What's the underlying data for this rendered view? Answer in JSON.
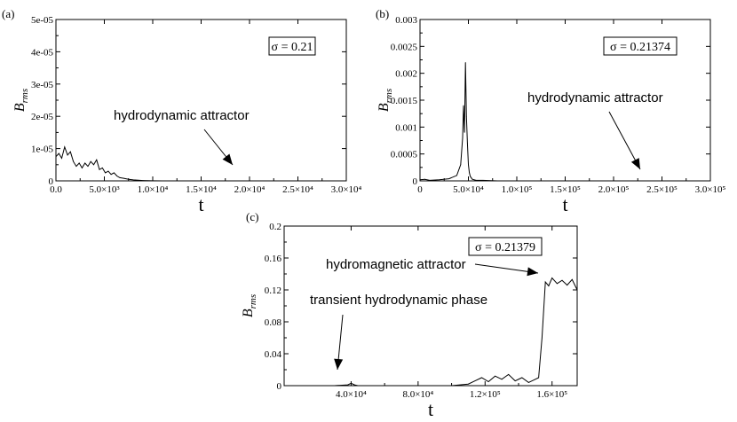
{
  "chart_data": [
    {
      "panel": "(a)",
      "type": "line",
      "xlabel": "t",
      "ylabel": "B",
      "ylabel_sub": "rms",
      "xlim": [
        0,
        30000
      ],
      "ylim": [
        0,
        5e-05
      ],
      "x_ticks": [
        0,
        5000,
        10000,
        15000,
        20000,
        25000,
        30000
      ],
      "x_tick_labels": [
        "0.0",
        "5.0×10³",
        "1.0×10⁴",
        "1.5×10⁴",
        "2.0×10⁴",
        "2.5×10⁴",
        "3.0×10⁴"
      ],
      "y_ticks": [
        0,
        1e-05,
        2e-05,
        3e-05,
        4e-05,
        5e-05
      ],
      "y_tick_labels": [
        "0",
        "1e-05",
        "2e-05",
        "3e-05",
        "4e-05",
        "5e-05"
      ],
      "sigma_label": "σ = 0.21",
      "annotation": "hydrodynamic attractor",
      "series": [
        {
          "x": [
            0,
            300,
            600,
            900,
            1200,
            1500,
            1800,
            2100,
            2400,
            2700,
            3000,
            3300,
            3600,
            3900,
            4200,
            4500,
            4800,
            5100,
            5400,
            5700,
            6000,
            6300,
            6600,
            7000,
            7500,
            8000,
            8500,
            9000,
            9500,
            10000,
            11000,
            12000,
            13000,
            14000
          ],
          "y": [
            7.5e-06,
            8.5e-06,
            7e-06,
            1.05e-05,
            8e-06,
            9e-06,
            6e-06,
            4.5e-06,
            5.5e-06,
            4e-06,
            5.5e-06,
            4.5e-06,
            6e-06,
            5e-06,
            6.5e-06,
            3.5e-06,
            4e-06,
            2.5e-06,
            3e-06,
            2e-06,
            2.5e-06,
            1.5e-06,
            1e-06,
            8e-07,
            5e-07,
            3e-07,
            2e-07,
            1e-07,
            6e-08,
            3e-08,
            1e-08,
            0,
            0,
            0
          ]
        }
      ]
    },
    {
      "panel": "(b)",
      "type": "line",
      "xlabel": "t",
      "ylabel": "B",
      "ylabel_sub": "rms",
      "xlim": [
        0,
        300000
      ],
      "ylim": [
        0,
        0.003
      ],
      "x_ticks": [
        0,
        50000,
        100000,
        150000,
        200000,
        250000,
        300000
      ],
      "x_tick_labels": [
        "0",
        "5.0×10⁴",
        "1.0×10⁵",
        "1.5×10⁵",
        "2.0×10⁵",
        "2.5×10⁵",
        "3.0×10⁵"
      ],
      "y_ticks": [
        0,
        0.0005,
        0.001,
        0.0015,
        0.002,
        0.0025,
        0.003
      ],
      "y_tick_labels": [
        "0",
        "0.0005",
        "0.001",
        "0.0015",
        "0.002",
        "0.0025",
        "0.003"
      ],
      "sigma_label": "σ = 0.21374",
      "annotation": "hydrodynamic attractor",
      "series": [
        {
          "x": [
            0,
            5000,
            10000,
            20000,
            30000,
            38000,
            42000,
            44000,
            45000,
            46000,
            47000,
            48000,
            49000,
            50000,
            51000,
            52000,
            54000,
            58000,
            65000,
            80000
          ],
          "y": [
            2e-05,
            3e-05,
            1e-05,
            2e-05,
            4e-05,
            0.0001,
            0.0003,
            0.0008,
            0.0014,
            0.0009,
            0.0022,
            0.0012,
            0.0007,
            0.0003,
            0.00015,
            8e-05,
            3e-05,
            1e-05,
            1e-05,
            0.0
          ]
        }
      ]
    },
    {
      "panel": "(c)",
      "type": "line",
      "xlabel": "t",
      "ylabel": "B",
      "ylabel_sub": "rms",
      "xlim": [
        0,
        175000
      ],
      "ylim": [
        0,
        0.2
      ],
      "x_ticks": [
        40000,
        80000,
        120000,
        160000
      ],
      "x_tick_labels": [
        "4.0×10⁴",
        "8.0×10⁴",
        "1.2×10⁵",
        "1.6×10⁵"
      ],
      "y_ticks": [
        0,
        0.04,
        0.08,
        0.12,
        0.16,
        0.2
      ],
      "y_tick_labels": [
        "0",
        "0.04",
        "0.08",
        "0.12",
        "0.16",
        "0.2"
      ],
      "sigma_label": "σ = 0.21379",
      "annotations": [
        "hydromagnetic attractor",
        "transient hydrodynamic phase"
      ],
      "series": [
        {
          "x": [
            0,
            30000,
            38000,
            40000,
            42000,
            44000,
            60000,
            100000,
            110000,
            114000,
            118000,
            122000,
            126000,
            130000,
            134000,
            138000,
            142000,
            146000,
            150000,
            152000,
            154000,
            156000,
            158000,
            160000,
            163000,
            166000,
            169000,
            172000,
            175000
          ],
          "y": [
            0,
            0,
            0.001,
            0.003,
            0.001,
            0,
            0,
            0,
            0.002,
            0.006,
            0.01,
            0.005,
            0.012,
            0.008,
            0.014,
            0.006,
            0.01,
            0.004,
            0.008,
            0.01,
            0.06,
            0.13,
            0.125,
            0.135,
            0.128,
            0.132,
            0.126,
            0.133,
            0.12
          ]
        }
      ]
    }
  ]
}
